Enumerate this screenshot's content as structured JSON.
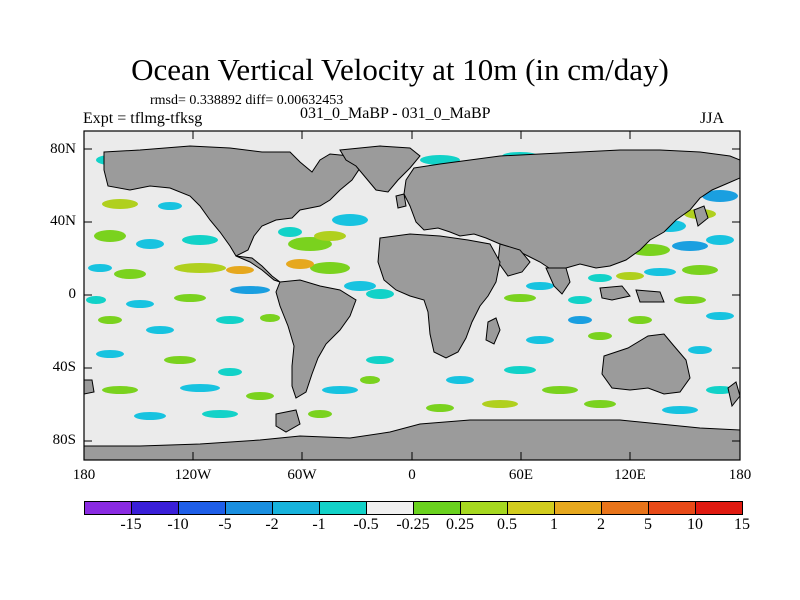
{
  "header": {
    "title": "Ocean Vertical Velocity at 10m (in cm/day)",
    "stats": "rmsd= 0.338892 diff= 0.00632453",
    "left_label": "Expt = tflmg-tfksg",
    "center_label": "031_0_MaBP - 031_0_MaBP",
    "right_label": "JJA"
  },
  "axes": {
    "y_ticks": [
      "80N",
      "40N",
      "0",
      "40S",
      "80S"
    ],
    "x_ticks": [
      "180",
      "120W",
      "60W",
      "0",
      "60E",
      "120E",
      "180"
    ]
  },
  "colorbar": {
    "colors": [
      "#8a2be2",
      "#3a1fd8",
      "#1e5ee8",
      "#1a8fe0",
      "#17b3dc",
      "#12d2c8",
      "#f0f0f0",
      "#6ad21e",
      "#a6d820",
      "#d2cc1e",
      "#e6a81e",
      "#e8741a",
      "#e84a18",
      "#e01a10"
    ],
    "labels": [
      "-15",
      "-10",
      "-5",
      "-2",
      "-1",
      "-0.5",
      "-0.25",
      "0.25",
      "0.5",
      "1",
      "2",
      "5",
      "10",
      "15"
    ]
  },
  "colors": {
    "ocean": "#ebebeb",
    "land": "#9b9b9b",
    "cyan": "#17c3e0",
    "teal": "#12d2c8",
    "green": "#7ad21e",
    "yellowgreen": "#b0d01e",
    "blue": "#1a9fe0",
    "orange": "#e6a81e"
  }
}
